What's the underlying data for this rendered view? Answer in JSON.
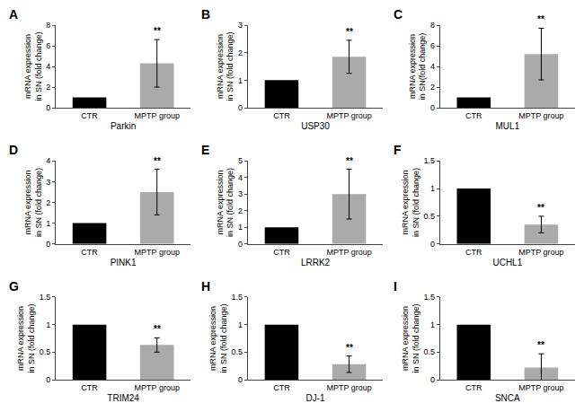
{
  "chart_data": [
    {
      "type": "bar",
      "title": "A",
      "xlabel": "Parkin",
      "ylabel": "mRNA expression\nin SN (fold change)",
      "categories": [
        "CTR",
        "MPTP group"
      ],
      "values": [
        1.0,
        4.3
      ],
      "errors": [
        null,
        2.3
      ],
      "colors": [
        "#000000",
        "#aaaaaa"
      ],
      "ylim": [
        0,
        8
      ],
      "yticks": [
        0,
        2,
        4,
        6,
        8
      ],
      "grid": false,
      "annotations": [
        {
          "text": "**",
          "category": "MPTP group"
        }
      ]
    },
    {
      "type": "bar",
      "title": "B",
      "xlabel": "USP30",
      "ylabel": "mRNA expression\nin SN (fold change)",
      "categories": [
        "CTR",
        "MPTP group"
      ],
      "values": [
        1.0,
        1.85
      ],
      "errors": [
        null,
        0.6
      ],
      "colors": [
        "#000000",
        "#aaaaaa"
      ],
      "ylim": [
        0,
        3
      ],
      "yticks": [
        0,
        1,
        2,
        3
      ],
      "grid": false,
      "annotations": [
        {
          "text": "**",
          "category": "MPTP group"
        }
      ]
    },
    {
      "type": "bar",
      "title": "C",
      "xlabel": "MUL1",
      "ylabel": "mRNA expression\nin SN(fold change)",
      "categories": [
        "CTR",
        "MPTP group"
      ],
      "values": [
        1.0,
        5.2
      ],
      "errors": [
        null,
        2.5
      ],
      "colors": [
        "#000000",
        "#aaaaaa"
      ],
      "ylim": [
        0,
        8
      ],
      "yticks": [
        0,
        2,
        4,
        6,
        8
      ],
      "grid": false,
      "annotations": [
        {
          "text": "**",
          "category": "MPTP group"
        }
      ]
    },
    {
      "type": "bar",
      "title": "D",
      "xlabel": "PINK1",
      "ylabel": "mRNA expression\nin SN (fold change)",
      "categories": [
        "CTR",
        "MPTP group"
      ],
      "values": [
        1.0,
        2.5
      ],
      "errors": [
        null,
        1.1
      ],
      "colors": [
        "#000000",
        "#aaaaaa"
      ],
      "ylim": [
        0,
        4
      ],
      "yticks": [
        0,
        1,
        2,
        3,
        4
      ],
      "grid": false,
      "annotations": [
        {
          "text": "**",
          "category": "MPTP group"
        }
      ]
    },
    {
      "type": "bar",
      "title": "E",
      "xlabel": "LRRK2",
      "ylabel": "mRNA expression\nin SN (fold change)",
      "categories": [
        "CTR",
        "MPTP group"
      ],
      "values": [
        1.0,
        3.0
      ],
      "errors": [
        null,
        1.5
      ],
      "colors": [
        "#000000",
        "#aaaaaa"
      ],
      "ylim": [
        0,
        5
      ],
      "yticks": [
        0,
        1,
        2,
        3,
        4,
        5
      ],
      "grid": false,
      "annotations": [
        {
          "text": "**",
          "category": "MPTP group"
        }
      ]
    },
    {
      "type": "bar",
      "title": "F",
      "xlabel": "UCHL1",
      "ylabel": "mRNA expression\nin SN (fold change)",
      "categories": [
        "CTR",
        "MPTP group"
      ],
      "values": [
        1.0,
        0.35
      ],
      "errors": [
        null,
        0.15
      ],
      "colors": [
        "#000000",
        "#aaaaaa"
      ],
      "ylim": [
        0,
        1.5
      ],
      "yticks": [
        0,
        0.5,
        1,
        1.5
      ],
      "grid": false,
      "annotations": [
        {
          "text": "**",
          "category": "MPTP group"
        }
      ]
    },
    {
      "type": "bar",
      "title": "G",
      "xlabel": "TRIM24",
      "ylabel": "mRNA expression\nin SN (fold change)",
      "categories": [
        "CTR",
        "MPTP group"
      ],
      "values": [
        1.0,
        0.63
      ],
      "errors": [
        null,
        0.13
      ],
      "colors": [
        "#000000",
        "#aaaaaa"
      ],
      "ylim": [
        0,
        1.5
      ],
      "yticks": [
        0,
        0.5,
        1,
        1.5
      ],
      "grid": false,
      "annotations": [
        {
          "text": "**",
          "category": "MPTP group"
        }
      ]
    },
    {
      "type": "bar",
      "title": "H",
      "xlabel": "DJ-1",
      "ylabel": "mRNA expression\nin SN (fold change)",
      "categories": [
        "CTR",
        "MPTP group"
      ],
      "values": [
        1.0,
        0.28
      ],
      "errors": [
        null,
        0.15
      ],
      "colors": [
        "#000000",
        "#aaaaaa"
      ],
      "ylim": [
        0,
        1.5
      ],
      "yticks": [
        0,
        0.5,
        1,
        1.5
      ],
      "grid": false,
      "annotations": [
        {
          "text": "**",
          "category": "MPTP group"
        }
      ]
    },
    {
      "type": "bar",
      "title": "I",
      "xlabel": "SNCA",
      "ylabel": "mRNA expression\nin SN (fold change)",
      "categories": [
        "CTR",
        "MPTP group"
      ],
      "values": [
        1.0,
        0.22
      ],
      "errors": [
        null,
        0.25
      ],
      "colors": [
        "#000000",
        "#aaaaaa"
      ],
      "ylim": [
        0,
        1.5
      ],
      "yticks": [
        0,
        0.5,
        1,
        1.5
      ],
      "grid": false,
      "annotations": [
        {
          "text": "**",
          "category": "MPTP group"
        }
      ]
    }
  ]
}
